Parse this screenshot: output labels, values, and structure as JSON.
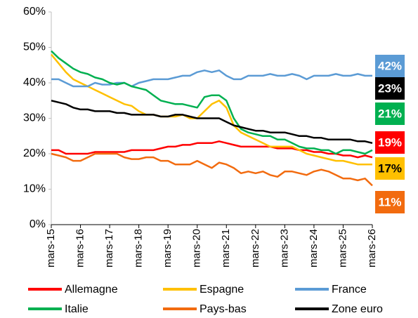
{
  "chart_data": {
    "type": "line",
    "categories": [
      "mars-15",
      null,
      null,
      null,
      "mars-16",
      null,
      null,
      null,
      "mars-17",
      null,
      null,
      null,
      "mars-18",
      null,
      null,
      null,
      "mars-19",
      null,
      null,
      null,
      "mars-20",
      null,
      null,
      null,
      "mars-21",
      null,
      null,
      null,
      "mars-22",
      null,
      null,
      null,
      "mars-23",
      null,
      null,
      null,
      "mars-24",
      null,
      null,
      null,
      "mars-25",
      null,
      null,
      null,
      "mars-26"
    ],
    "ylim": [
      0,
      60
    ],
    "yticks": [
      {
        "value": 0,
        "label": "0%"
      },
      {
        "value": 10,
        "label": "10%"
      },
      {
        "value": 20,
        "label": "20%"
      },
      {
        "value": 30,
        "label": "30%"
      },
      {
        "value": 40,
        "label": "40%"
      },
      {
        "value": 50,
        "label": "50%"
      },
      {
        "value": 60,
        "label": "60%"
      }
    ],
    "legend": "bottom",
    "series": [
      {
        "name": "Allemagne",
        "color": "#ff0000",
        "end_label": "19%",
        "values": [
          21,
          21,
          20,
          20,
          20,
          20,
          20.5,
          20.5,
          20.5,
          20.5,
          20.5,
          21,
          21,
          21,
          21,
          21.5,
          22,
          22,
          22.5,
          22.5,
          23,
          23,
          23,
          23.5,
          23,
          22.5,
          22,
          22,
          22,
          22,
          22,
          21.5,
          21.5,
          21.5,
          21,
          21,
          20.5,
          20.5,
          20,
          20,
          19.5,
          19.5,
          19,
          19.5,
          19
        ]
      },
      {
        "name": "Espagne",
        "color": "#ffc000",
        "end_label": "17%",
        "values": [
          48,
          45.5,
          43,
          41,
          40,
          39,
          38,
          37,
          36,
          35,
          34,
          33.5,
          32,
          31,
          31,
          30.5,
          30.5,
          30.5,
          31,
          30,
          30,
          32,
          34,
          35,
          33,
          28,
          26,
          25,
          24,
          23,
          22,
          22,
          22,
          22,
          21,
          20,
          19.5,
          19,
          18.5,
          18,
          18,
          17.5,
          17,
          17,
          17
        ]
      },
      {
        "name": "France",
        "color": "#5b9bd5",
        "end_label": "42%",
        "values": [
          41,
          41,
          40,
          39,
          39,
          39,
          40,
          39.5,
          39.5,
          40,
          40,
          39,
          40,
          40.5,
          41,
          41,
          41,
          41.5,
          42,
          42,
          43,
          43.5,
          43,
          43.5,
          42,
          41,
          41,
          42,
          42,
          42,
          42.5,
          42,
          42,
          42.5,
          42,
          41,
          42,
          42,
          42,
          42.5,
          42,
          42,
          42.5,
          42,
          42
        ]
      },
      {
        "name": "Italie",
        "color": "#00b050",
        "end_label": "21%",
        "values": [
          49,
          47,
          45.5,
          44,
          43,
          42.5,
          41.5,
          41,
          40,
          39.5,
          40,
          39,
          38.5,
          38,
          36.5,
          35,
          34.5,
          34,
          34,
          33.5,
          33,
          36,
          36.5,
          36.5,
          35,
          30,
          27,
          26,
          25.5,
          25,
          25,
          24,
          24,
          23,
          22,
          21.5,
          21.5,
          21,
          21,
          20,
          21,
          21,
          20.5,
          20,
          21
        ]
      },
      {
        "name": "Pays-bas",
        "color": "#f26b0f",
        "end_label": "11%",
        "values": [
          20,
          19.5,
          19,
          18,
          18,
          19,
          20,
          20,
          20,
          20,
          19,
          18.5,
          18.5,
          19,
          19,
          18,
          18,
          17,
          17,
          17,
          18,
          17,
          16,
          17.5,
          17,
          16,
          14.5,
          15,
          14.5,
          15,
          14,
          13.5,
          15,
          15,
          14.5,
          14,
          15,
          15.5,
          15,
          14,
          13,
          13,
          12.5,
          13,
          11
        ]
      },
      {
        "name": "Zone euro",
        "color": "#000000",
        "end_label": "23%",
        "values": [
          35,
          34.5,
          34,
          33,
          32.5,
          32.5,
          32,
          32,
          32,
          31.5,
          31.5,
          31,
          31,
          31,
          31,
          30.5,
          30.5,
          31,
          31,
          30.5,
          30,
          30,
          30,
          30,
          29,
          28,
          27.5,
          27,
          26.5,
          26.5,
          26,
          26,
          26,
          25.5,
          25,
          25,
          24.5,
          24.5,
          24,
          24,
          24,
          24,
          23.5,
          23.5,
          23
        ]
      }
    ]
  }
}
